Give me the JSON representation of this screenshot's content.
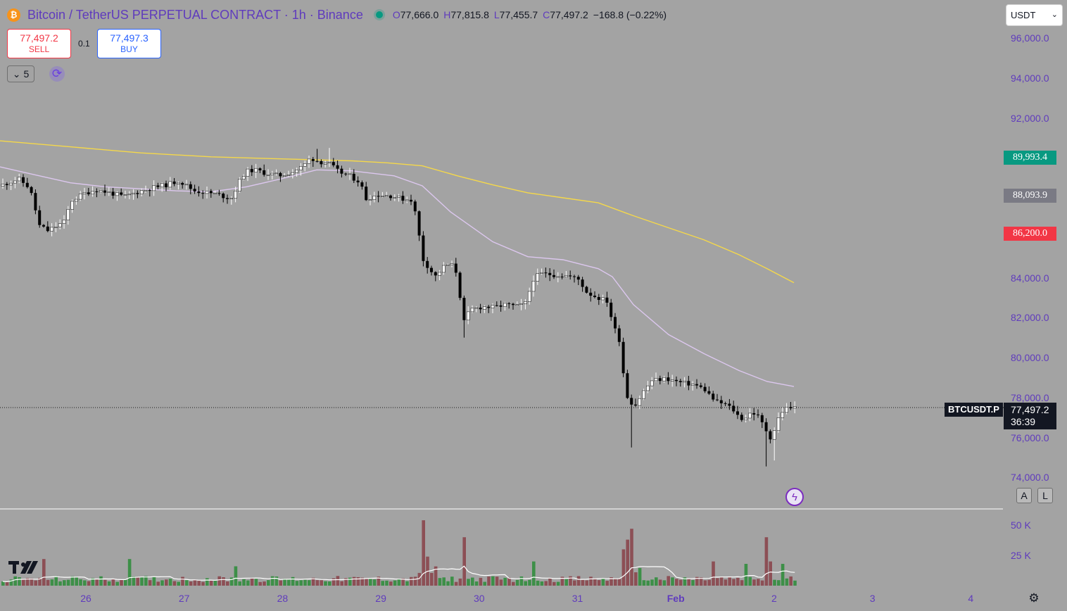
{
  "header": {
    "coin_icon": "bitcoin-icon",
    "title": "Bitcoin / TetherUS PERPETUAL CONTRACT · 1h · Binance",
    "ohlc": [
      {
        "k": "O",
        "v": "77,666.0"
      },
      {
        "k": "H",
        "v": "77,815.8"
      },
      {
        "k": "L",
        "v": "77,455.7"
      },
      {
        "k": "C",
        "v": "77,497.2"
      }
    ],
    "change": "−168.8 (−0.22%)"
  },
  "trade": {
    "sell_price": "77,497.2",
    "sell_label": "SELL",
    "spread": "0.1",
    "buy_price": "77,497.3",
    "buy_label": "BUY"
  },
  "indicators": {
    "count": "5",
    "collapse_icon": "chevron-down-icon",
    "refresh_icon": "refresh-icon"
  },
  "currency_select": {
    "value": "USDT"
  },
  "price_tags": [
    {
      "value": "89,993.4",
      "price": 89993.4,
      "color": "#089981"
    },
    {
      "value": "88,093.9",
      "price": 88093.9,
      "color": "#7a7a84"
    },
    {
      "value": "86,200.0",
      "price": 86200.0,
      "color": "#f23645"
    }
  ],
  "current": {
    "symbol": "BTCUSDT.P",
    "price": "77,497.2",
    "countdown": "36:39"
  },
  "buttons": {
    "auto": "A",
    "log": "L"
  },
  "chart_data": {
    "type": "candlestick",
    "symbol": "BTCUSDT.P",
    "interval": "1h",
    "exchange": "Binance",
    "y_axis": {
      "ticks": [
        96000,
        94000,
        92000,
        90000,
        88000,
        86000,
        84000,
        82000,
        80000,
        78000,
        76000,
        74000
      ],
      "tick_labels": [
        "96,000.0",
        "94,000.0",
        "92,000.0",
        "",
        "",
        "",
        "84,000.0",
        "82,000.0",
        "80,000.0",
        "78,000.0",
        "76,000.0",
        "74,000.0"
      ]
    },
    "x_axis": {
      "labels": [
        "26",
        "27",
        "28",
        "29",
        "30",
        "31",
        "Feb",
        "2",
        "3",
        "4"
      ],
      "bold": [
        "Feb"
      ]
    },
    "last_price": 77497.2,
    "price_path": [
      [
        0,
        88550
      ],
      [
        30,
        88950
      ],
      [
        46,
        88500
      ],
      [
        60,
        86600
      ],
      [
        72,
        86350
      ],
      [
        95,
        86800
      ],
      [
        105,
        87850
      ],
      [
        125,
        88250
      ],
      [
        140,
        88400
      ],
      [
        160,
        88250
      ],
      [
        180,
        88050
      ],
      [
        200,
        88300
      ],
      [
        220,
        88500
      ],
      [
        240,
        88650
      ],
      [
        258,
        88850
      ],
      [
        280,
        88350
      ],
      [
        300,
        88250
      ],
      [
        315,
        88150
      ],
      [
        332,
        87950
      ],
      [
        345,
        88900
      ],
      [
        352,
        89300
      ],
      [
        365,
        89400
      ],
      [
        380,
        89250
      ],
      [
        400,
        89100
      ],
      [
        420,
        89300
      ],
      [
        435,
        89600
      ],
      [
        445,
        90000
      ],
      [
        458,
        89800
      ],
      [
        470,
        89750
      ],
      [
        485,
        89300
      ],
      [
        500,
        89100
      ],
      [
        515,
        88800
      ],
      [
        524,
        87950
      ],
      [
        540,
        88150
      ],
      [
        560,
        88100
      ],
      [
        575,
        87950
      ],
      [
        590,
        87900
      ],
      [
        598,
        86500
      ],
      [
        603,
        85000
      ],
      [
        612,
        84550
      ],
      [
        622,
        84050
      ],
      [
        637,
        84650
      ],
      [
        650,
        84600
      ],
      [
        656,
        83500
      ],
      [
        662,
        81700
      ],
      [
        672,
        82400
      ],
      [
        690,
        82550
      ],
      [
        706,
        82500
      ],
      [
        720,
        82650
      ],
      [
        740,
        82550
      ],
      [
        752,
        82750
      ],
      [
        760,
        83900
      ],
      [
        772,
        84200
      ],
      [
        790,
        84150
      ],
      [
        810,
        84100
      ],
      [
        826,
        83900
      ],
      [
        838,
        83250
      ],
      [
        850,
        83050
      ],
      [
        868,
        82800
      ],
      [
        874,
        81700
      ],
      [
        886,
        80700
      ],
      [
        890,
        79000
      ],
      [
        896,
        77900
      ],
      [
        906,
        77600
      ],
      [
        918,
        78300
      ],
      [
        930,
        78850
      ],
      [
        950,
        78950
      ],
      [
        970,
        78750
      ],
      [
        990,
        78650
      ],
      [
        1005,
        78400
      ],
      [
        1020,
        77800
      ],
      [
        1035,
        77650
      ],
      [
        1045,
        77400
      ],
      [
        1052,
        77100
      ],
      [
        1060,
        76900
      ],
      [
        1072,
        77300
      ],
      [
        1082,
        77000
      ],
      [
        1090,
        76500
      ],
      [
        1100,
        75900
      ],
      [
        1108,
        76850
      ],
      [
        1118,
        77450
      ],
      [
        1130,
        77497
      ]
    ],
    "overlays": [
      {
        "color": "#f5d84a",
        "points": [
          [
            0,
            90850
          ],
          [
            100,
            90550
          ],
          [
            200,
            90250
          ],
          [
            300,
            90050
          ],
          [
            400,
            89950
          ],
          [
            500,
            89850
          ],
          [
            550,
            89750
          ],
          [
            600,
            89600
          ],
          [
            650,
            89100
          ],
          [
            700,
            88650
          ],
          [
            750,
            88250
          ],
          [
            800,
            88000
          ],
          [
            850,
            87750
          ],
          [
            900,
            87100
          ],
          [
            950,
            86500
          ],
          [
            1000,
            85900
          ],
          [
            1050,
            85150
          ],
          [
            1090,
            84450
          ],
          [
            1128,
            83750
          ]
        ]
      },
      {
        "color": "#dcc7ee",
        "points": [
          [
            0,
            89550
          ],
          [
            50,
            89150
          ],
          [
            100,
            88750
          ],
          [
            150,
            88550
          ],
          [
            200,
            88450
          ],
          [
            250,
            88350
          ],
          [
            300,
            88300
          ],
          [
            350,
            88550
          ],
          [
            400,
            88950
          ],
          [
            450,
            89400
          ],
          [
            500,
            89350
          ],
          [
            560,
            89100
          ],
          [
            600,
            88600
          ],
          [
            640,
            87300
          ],
          [
            700,
            85800
          ],
          [
            750,
            85050
          ],
          [
            800,
            84900
          ],
          [
            850,
            84450
          ],
          [
            870,
            84050
          ],
          [
            900,
            82650
          ],
          [
            950,
            81150
          ],
          [
            1000,
            80200
          ],
          [
            1050,
            79350
          ],
          [
            1090,
            78800
          ],
          [
            1128,
            78550
          ]
        ]
      }
    ],
    "volume": {
      "ticks": [
        50000,
        25000
      ],
      "tick_labels": [
        "50 K",
        "25 K"
      ],
      "spikes": [
        {
          "x": 600,
          "v": 54000
        },
        {
          "x": 606,
          "v": 24000
        },
        {
          "x": 657,
          "v": 40000
        },
        {
          "x": 895,
          "v": 47000
        },
        {
          "x": 890,
          "v": 38000
        },
        {
          "x": 885,
          "v": 30000
        },
        {
          "x": 1088,
          "v": 40000
        },
        {
          "x": 1094,
          "v": 20000
        },
        {
          "x": 62,
          "v": 22000
        },
        {
          "x": 180,
          "v": 22000
        },
        {
          "x": 330,
          "v": 16000
        },
        {
          "x": 1012,
          "v": 20000
        },
        {
          "x": 755,
          "v": 20000
        },
        {
          "x": 1055,
          "v": 18000
        },
        {
          "x": 1107,
          "v": 18000
        }
      ]
    },
    "grid": false
  },
  "colors": {
    "up": "#ffffff",
    "down": "#000000",
    "vol_up": "#3d8f48",
    "vol_down": "#8c4f55"
  }
}
